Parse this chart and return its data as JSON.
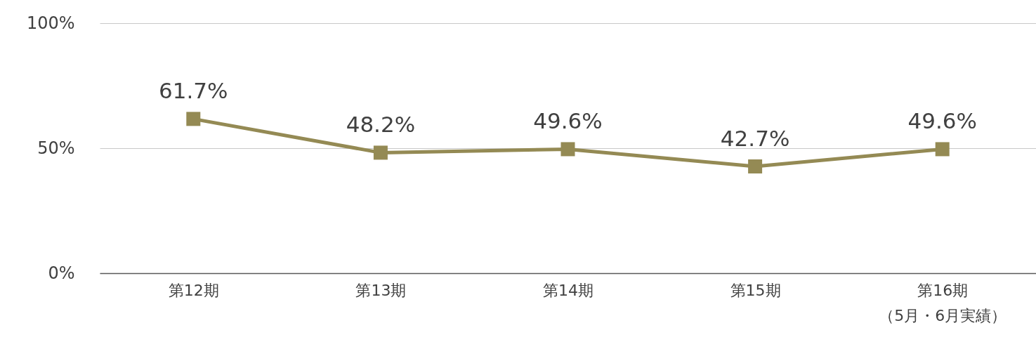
{
  "chart_data": {
    "type": "line",
    "categories": [
      "第12期",
      "第13期",
      "第14期",
      "第15期",
      "第16期（5月・6月実績）"
    ],
    "series": [
      {
        "color": "#948a54",
        "values": [
          61.7,
          48.2,
          49.6,
          42.7,
          49.6
        ],
        "value_labels": [
          "61.7%",
          "48.2%",
          "49.6%",
          "42.7%",
          "49.6%"
        ]
      }
    ],
    "ylim": [
      0,
      100
    ],
    "yticks": [
      {
        "value": 0,
        "label": "0%"
      },
      {
        "value": 50,
        "label": "50%"
      },
      {
        "value": 100,
        "label": "100%"
      }
    ],
    "grid": "y",
    "marker": "square",
    "line_style": "solid",
    "legend": false
  }
}
